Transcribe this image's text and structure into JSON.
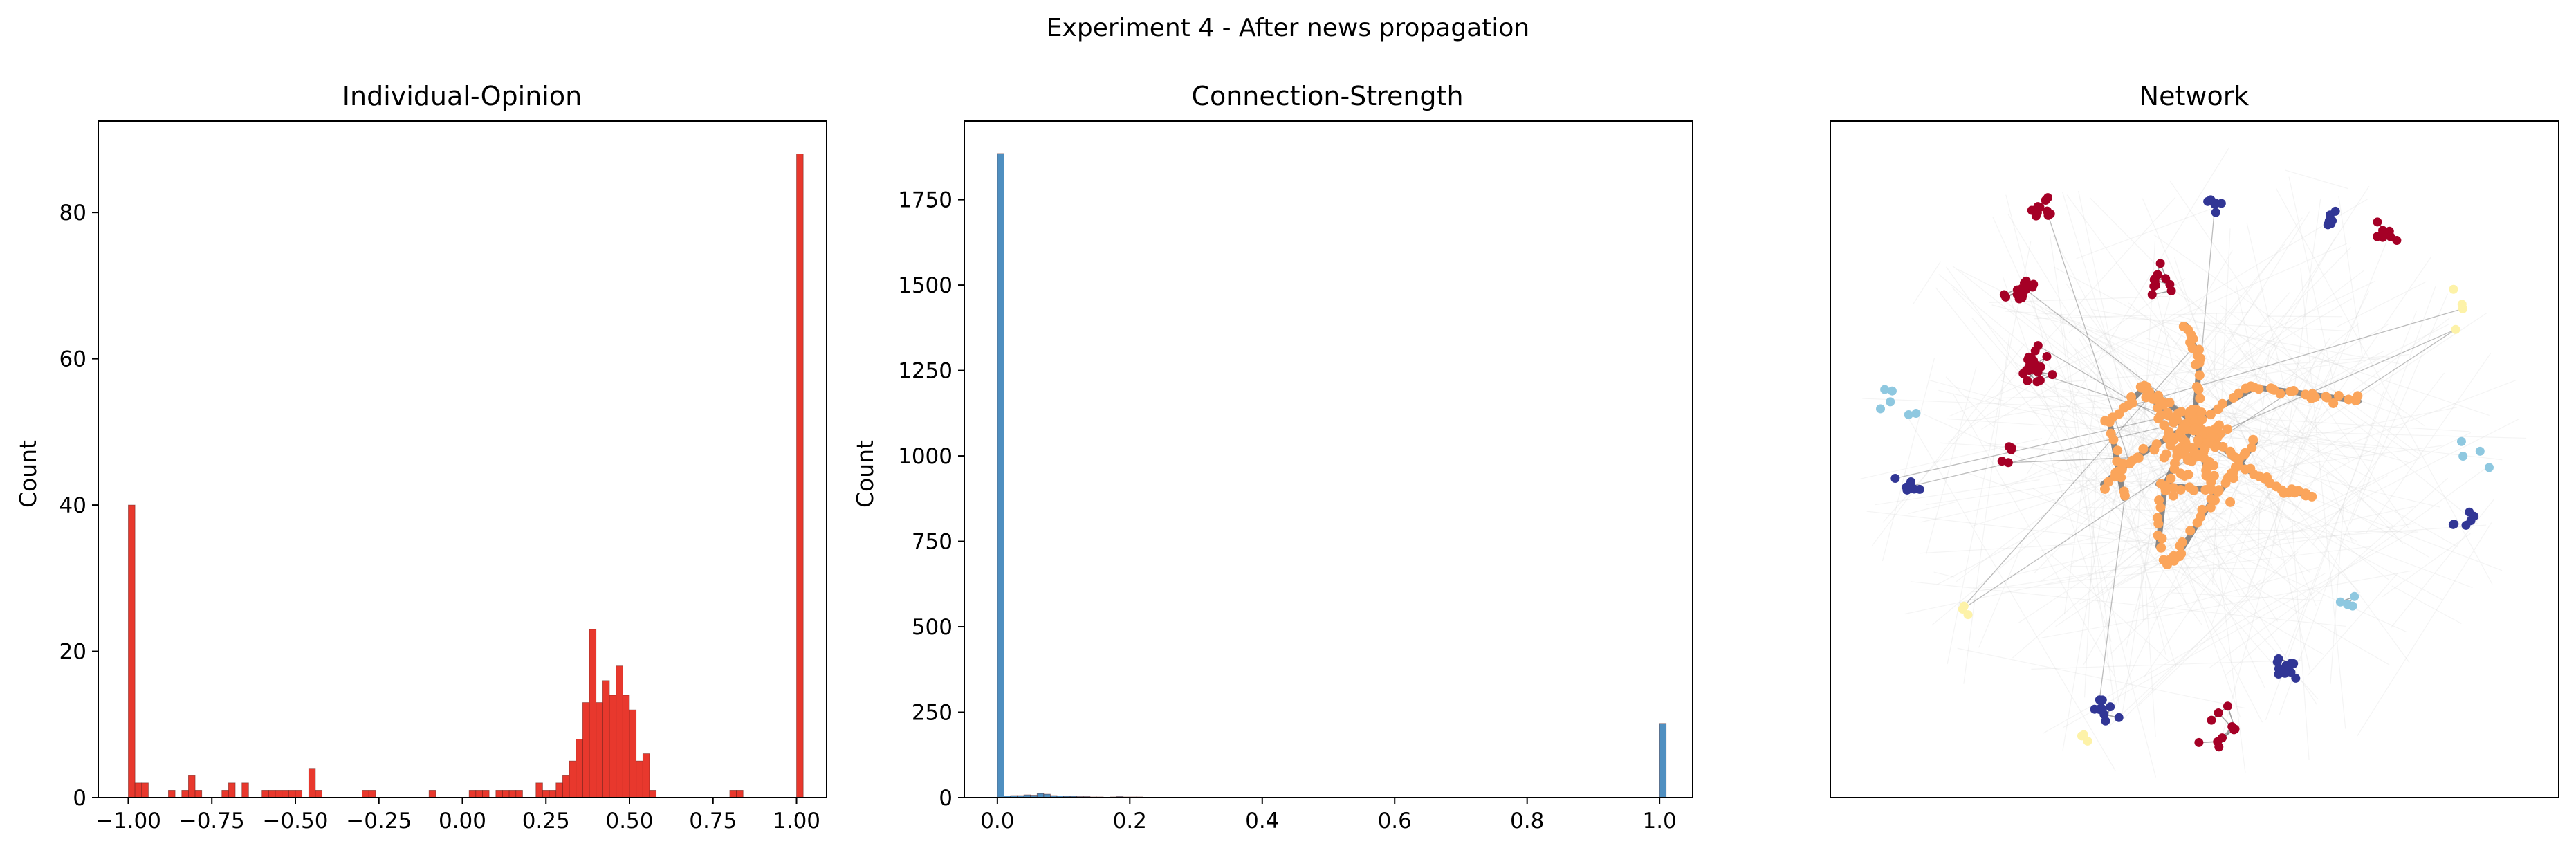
{
  "suptitle": "Experiment 4 - After news propagation",
  "colors": {
    "opinion_bar": "#e8382d",
    "strength_bar": "#4f8fc0",
    "node_red": "#a50026",
    "node_orange": "#fba55b",
    "node_navy": "#313695",
    "node_lightblue": "#8ec8e0",
    "node_pale": "#fdf2a8",
    "edge_gray": "#7a7a7a"
  },
  "chart_data": [
    {
      "type": "bar",
      "title": "Individual-Opinion",
      "xlabel": "",
      "ylabel": "Count",
      "xlim": [
        -1.09,
        1.09
      ],
      "ylim": [
        0,
        92.5
      ],
      "xticks": [
        -1.0,
        -0.75,
        -0.5,
        -0.25,
        0.0,
        0.25,
        0.5,
        0.75,
        1.0
      ],
      "xtick_labels": [
        "−1.00",
        "−0.75",
        "−0.50",
        "−0.25",
        "0.00",
        "0.25",
        "0.50",
        "0.75",
        "1.00"
      ],
      "yticks": [
        0,
        20,
        40,
        60,
        80
      ],
      "ytick_labels": [
        "0",
        "20",
        "40",
        "60",
        "80"
      ],
      "bin_start": -1.0,
      "bin_width": 0.02,
      "values": [
        40,
        2,
        2,
        0,
        0,
        0,
        1,
        0,
        1,
        3,
        1,
        0,
        0,
        0,
        1,
        2,
        0,
        2,
        0,
        0,
        1,
        1,
        1,
        1,
        1,
        1,
        0,
        4,
        1,
        0,
        0,
        0,
        0,
        0,
        0,
        1,
        1,
        0,
        0,
        0,
        0,
        0,
        0,
        0,
        0,
        1,
        0,
        0,
        0,
        0,
        0,
        1,
        1,
        1,
        0,
        1,
        1,
        1,
        1,
        0,
        0,
        2,
        1,
        1,
        2,
        3,
        5,
        8,
        13,
        23,
        13,
        16,
        14,
        18,
        14,
        12,
        5,
        6,
        1,
        0,
        0,
        0,
        0,
        0,
        0,
        0,
        0,
        0,
        0,
        0,
        1,
        1,
        0,
        0,
        0,
        0,
        0,
        0,
        0,
        0,
        88
      ],
      "grid": false
    },
    {
      "type": "bar",
      "title": "Connection-Strength",
      "xlabel": "",
      "ylabel": "Count",
      "xlim": [
        -0.05,
        1.05
      ],
      "ylim": [
        0,
        1980
      ],
      "xticks": [
        0.0,
        0.2,
        0.4,
        0.6,
        0.8,
        1.0
      ],
      "xtick_labels": [
        "0.0",
        "0.2",
        "0.4",
        "0.6",
        "0.8",
        "1.0"
      ],
      "yticks": [
        0,
        250,
        500,
        750,
        1000,
        1250,
        1500,
        1750
      ],
      "ytick_labels": [
        "0",
        "250",
        "500",
        "750",
        "1000",
        "1250",
        "1500",
        "1750"
      ],
      "bin_start": 0.0,
      "bin_width": 0.01,
      "values": [
        1885,
        5,
        6,
        6,
        8,
        7,
        12,
        10,
        6,
        5,
        4,
        4,
        3,
        3,
        2,
        2,
        1,
        2,
        3,
        2,
        2,
        2,
        1,
        1,
        1,
        1,
        0,
        0,
        0,
        0,
        0,
        0,
        0,
        0,
        0,
        0,
        0,
        0,
        0,
        0,
        0,
        0,
        0,
        0,
        0,
        0,
        0,
        0,
        0,
        0,
        0,
        0,
        0,
        0,
        0,
        0,
        0,
        0,
        0,
        0,
        0,
        0,
        0,
        0,
        0,
        0,
        0,
        0,
        0,
        0,
        0,
        0,
        0,
        0,
        0,
        0,
        0,
        0,
        0,
        0,
        0,
        0,
        0,
        0,
        0,
        0,
        0,
        0,
        0,
        0,
        0,
        0,
        0,
        0,
        0,
        0,
        0,
        0,
        0,
        0,
        217
      ],
      "grid": false
    },
    {
      "type": "network",
      "title": "Network",
      "node_groups": [
        "red",
        "orange",
        "navy",
        "lightblue",
        "pale"
      ],
      "axes_ticks": false
    }
  ]
}
